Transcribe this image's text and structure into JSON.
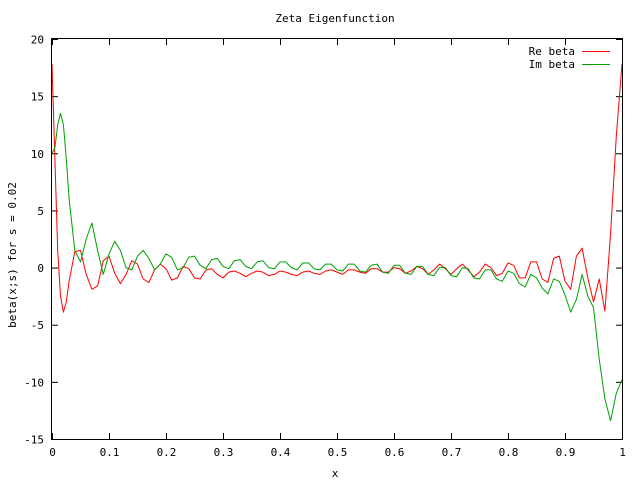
{
  "chart_data": {
    "type": "line",
    "title": "Zeta Eigenfunction",
    "xlabel": "x",
    "ylabel": "beta(x;s) for s = 0.02",
    "xlim": [
      0,
      1
    ],
    "ylim": [
      -15,
      20
    ],
    "xticks": [
      "0",
      "0.1",
      "0.2",
      "0.3",
      "0.4",
      "0.5",
      "0.6",
      "0.7",
      "0.8",
      "0.9",
      "1"
    ],
    "yticks": [
      "-15",
      "-10",
      "-5",
      "0",
      "5",
      "10",
      "15",
      "20"
    ],
    "grid": false,
    "legend_position": "top-right",
    "series": [
      {
        "name": "Re beta",
        "color": "#ff0000",
        "x": [
          0,
          0.005,
          0.01,
          0.015,
          0.02,
          0.025,
          0.03,
          0.04,
          0.05,
          0.06,
          0.07,
          0.08,
          0.09,
          0.1,
          0.11,
          0.12,
          0.13,
          0.14,
          0.15,
          0.16,
          0.17,
          0.18,
          0.19,
          0.2,
          0.21,
          0.22,
          0.23,
          0.24,
          0.25,
          0.26,
          0.27,
          0.28,
          0.29,
          0.3,
          0.31,
          0.32,
          0.33,
          0.34,
          0.35,
          0.36,
          0.37,
          0.38,
          0.39,
          0.4,
          0.41,
          0.42,
          0.43,
          0.44,
          0.45,
          0.46,
          0.47,
          0.48,
          0.49,
          0.5,
          0.51,
          0.52,
          0.53,
          0.54,
          0.55,
          0.56,
          0.57,
          0.58,
          0.59,
          0.6,
          0.61,
          0.62,
          0.63,
          0.64,
          0.65,
          0.66,
          0.67,
          0.68,
          0.69,
          0.7,
          0.71,
          0.72,
          0.73,
          0.74,
          0.75,
          0.76,
          0.77,
          0.78,
          0.79,
          0.8,
          0.81,
          0.82,
          0.83,
          0.84,
          0.85,
          0.86,
          0.87,
          0.88,
          0.89,
          0.9,
          0.91,
          0.92,
          0.93,
          0.94,
          0.95,
          0.96,
          0.97,
          0.98,
          0.99,
          1
        ],
        "y": [
          17.8,
          9.5,
          1.5,
          -2.5,
          -3.9,
          -3.0,
          -1.2,
          1.4,
          1.5,
          -0.6,
          -1.9,
          -1.6,
          0.6,
          1.0,
          -0.5,
          -1.4,
          -0.6,
          0.6,
          0.3,
          -1.0,
          -1.3,
          -0.2,
          0.3,
          -0.1,
          -1.1,
          -0.9,
          0.1,
          -0.1,
          -0.9,
          -1.0,
          -0.2,
          -0.1,
          -0.6,
          -0.9,
          -0.4,
          -0.3,
          -0.5,
          -0.8,
          -0.5,
          -0.3,
          -0.4,
          -0.7,
          -0.6,
          -0.3,
          -0.4,
          -0.6,
          -0.7,
          -0.4,
          -0.3,
          -0.5,
          -0.6,
          -0.3,
          -0.2,
          -0.4,
          -0.6,
          -0.2,
          -0.2,
          -0.4,
          -0.5,
          -0.1,
          -0.1,
          -0.4,
          -0.4,
          0.0,
          -0.1,
          -0.5,
          -0.3,
          0.1,
          -0.1,
          -0.6,
          -0.2,
          0.3,
          -0.1,
          -0.6,
          -0.1,
          0.3,
          -0.2,
          -0.8,
          -0.4,
          0.3,
          0.0,
          -0.7,
          -0.5,
          0.4,
          0.2,
          -0.9,
          -0.9,
          0.5,
          0.5,
          -1.0,
          -1.3,
          0.8,
          1.0,
          -1.2,
          -1.9,
          1.0,
          1.7,
          -0.9,
          -3.0,
          -1.0,
          -3.8,
          3.0,
          11.5,
          17.8
        ]
      },
      {
        "name": "Im beta",
        "color": "#00a000",
        "x": [
          0,
          0.005,
          0.01,
          0.015,
          0.02,
          0.025,
          0.03,
          0.04,
          0.05,
          0.06,
          0.07,
          0.08,
          0.09,
          0.1,
          0.11,
          0.12,
          0.13,
          0.14,
          0.15,
          0.16,
          0.17,
          0.18,
          0.19,
          0.2,
          0.21,
          0.22,
          0.23,
          0.24,
          0.25,
          0.26,
          0.27,
          0.28,
          0.29,
          0.3,
          0.31,
          0.32,
          0.33,
          0.34,
          0.35,
          0.36,
          0.37,
          0.38,
          0.39,
          0.4,
          0.41,
          0.42,
          0.43,
          0.44,
          0.45,
          0.46,
          0.47,
          0.48,
          0.49,
          0.5,
          0.51,
          0.52,
          0.53,
          0.54,
          0.55,
          0.56,
          0.57,
          0.58,
          0.59,
          0.6,
          0.61,
          0.62,
          0.63,
          0.64,
          0.65,
          0.66,
          0.67,
          0.68,
          0.69,
          0.7,
          0.71,
          0.72,
          0.73,
          0.74,
          0.75,
          0.76,
          0.77,
          0.78,
          0.79,
          0.8,
          0.81,
          0.82,
          0.83,
          0.84,
          0.85,
          0.86,
          0.87,
          0.88,
          0.89,
          0.9,
          0.91,
          0.92,
          0.93,
          0.94,
          0.95,
          0.96,
          0.97,
          0.98,
          0.99,
          1
        ],
        "y": [
          10.0,
          10.5,
          12.5,
          13.5,
          12.5,
          9.5,
          6.0,
          1.5,
          0.5,
          2.5,
          3.9,
          1.5,
          -0.6,
          1.2,
          2.3,
          1.5,
          0.0,
          -0.2,
          1.0,
          1.5,
          0.8,
          -0.2,
          0.3,
          1.2,
          0.9,
          -0.2,
          0.0,
          0.9,
          1.0,
          0.2,
          -0.1,
          0.7,
          0.8,
          0.1,
          -0.1,
          0.6,
          0.7,
          0.1,
          -0.1,
          0.5,
          0.6,
          0.0,
          -0.1,
          0.5,
          0.5,
          0.0,
          -0.2,
          0.4,
          0.4,
          -0.1,
          -0.2,
          0.3,
          0.3,
          -0.2,
          -0.3,
          0.3,
          0.3,
          -0.3,
          -0.4,
          0.2,
          0.3,
          -0.4,
          -0.5,
          0.2,
          0.2,
          -0.5,
          -0.6,
          0.1,
          0.1,
          -0.6,
          -0.7,
          0.0,
          0.0,
          -0.7,
          -0.8,
          0.0,
          -0.1,
          -0.9,
          -1.0,
          -0.2,
          -0.2,
          -1.0,
          -1.2,
          -0.3,
          -0.5,
          -1.4,
          -1.7,
          -0.6,
          -0.9,
          -1.8,
          -2.3,
          -1.0,
          -1.2,
          -2.4,
          -3.9,
          -2.8,
          -0.6,
          -2.5,
          -3.5,
          -8.0,
          -11.5,
          -13.4,
          -11.0,
          -9.8
        ]
      }
    ]
  }
}
